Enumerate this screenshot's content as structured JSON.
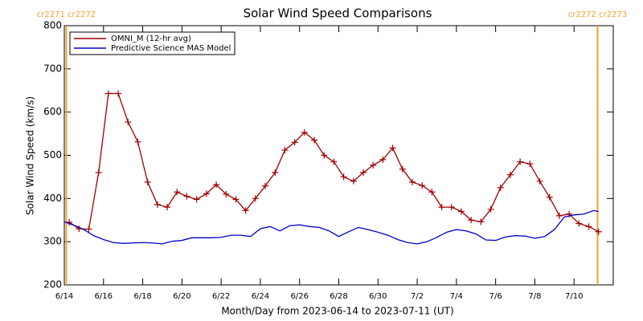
{
  "chart_data": {
    "type": "line",
    "title": "Solar Wind Speed Comparisons",
    "xlabel": "Month/Day from 2023-06-14 to 2023-07-11 (UT)",
    "ylabel": "Solar Wind Speed (km/s)",
    "xlim": [
      0,
      28
    ],
    "xticks": [
      {
        "value": 0,
        "label": "6/14"
      },
      {
        "value": 2,
        "label": "6/16"
      },
      {
        "value": 4,
        "label": "6/18"
      },
      {
        "value": 6,
        "label": "6/20"
      },
      {
        "value": 8,
        "label": "6/22"
      },
      {
        "value": 10,
        "label": "6/24"
      },
      {
        "value": 12,
        "label": "6/26"
      },
      {
        "value": 14,
        "label": "6/28"
      },
      {
        "value": 16,
        "label": "6/30"
      },
      {
        "value": 18,
        "label": "7/2"
      },
      {
        "value": 20,
        "label": "7/4"
      },
      {
        "value": 22,
        "label": "7/6"
      },
      {
        "value": 24,
        "label": "7/8"
      },
      {
        "value": 26,
        "label": "7/10"
      }
    ],
    "ylim": [
      200,
      800
    ],
    "yticks": [
      200,
      300,
      400,
      500,
      600,
      700,
      800
    ],
    "legend": "upper left",
    "annotations": [
      {
        "x": 0.1,
        "text": "cr2271 cr2272",
        "color": "#f0a030"
      },
      {
        "x": 27.2,
        "text": "cr2272 cr2273",
        "color": "#f0a030"
      }
    ],
    "series": [
      {
        "name": "OMNI_M (12-hr avg)",
        "color": "#a00000",
        "marker": "+",
        "x": [
          0.25,
          0.75,
          1.25,
          1.75,
          2.25,
          2.75,
          3.25,
          3.75,
          4.25,
          4.75,
          5.25,
          5.75,
          6.25,
          6.75,
          7.25,
          7.75,
          8.25,
          8.75,
          9.25,
          9.75,
          10.25,
          10.75,
          11.25,
          11.75,
          12.25,
          12.75,
          13.25,
          13.75,
          14.25,
          14.75,
          15.25,
          15.75,
          16.25,
          16.75,
          17.25,
          17.75,
          18.25,
          18.75,
          19.25,
          19.75,
          20.25,
          20.75,
          21.25,
          21.75,
          22.25,
          22.75,
          23.25,
          23.75,
          24.25,
          24.75,
          25.25,
          25.75,
          26.25,
          26.75,
          27.25
        ],
        "values": [
          345,
          330,
          329,
          460,
          643,
          643,
          577,
          531,
          438,
          386,
          380,
          415,
          405,
          398,
          411,
          432,
          410,
          398,
          372,
          400,
          429,
          460,
          512,
          530,
          553,
          535,
          500,
          485,
          450,
          440,
          460,
          477,
          490,
          517,
          468,
          438,
          430,
          415,
          380,
          380,
          370,
          350,
          346,
          375,
          425,
          455,
          485,
          480,
          440,
          403,
          360,
          364,
          342,
          335,
          323
        ]
      },
      {
        "name": "Predictive Science MAS Model",
        "color": "#0000cc",
        "x": [
          0,
          0.5,
          1,
          1.5,
          2,
          2.5,
          3,
          3.5,
          4,
          4.5,
          5,
          5.5,
          6,
          6.5,
          7,
          7.5,
          8,
          8.5,
          9,
          9.5,
          10,
          10.5,
          11,
          11.5,
          12,
          12.5,
          13,
          13.5,
          14,
          14.5,
          15,
          15.5,
          16,
          16.5,
          17,
          17.5,
          18,
          18.5,
          19,
          19.5,
          20,
          20.5,
          21,
          21.5,
          22,
          22.5,
          23,
          23.5,
          24,
          24.5,
          25,
          25.5,
          26,
          26.5,
          27,
          27.25
        ],
        "values": [
          346,
          338,
          328,
          314,
          305,
          298,
          296,
          297,
          298,
          297,
          295,
          301,
          303,
          309,
          309,
          309,
          310,
          315,
          315,
          312,
          330,
          335,
          325,
          337,
          339,
          335,
          333,
          325,
          312,
          323,
          333,
          328,
          322,
          315,
          305,
          298,
          295,
          300,
          310,
          322,
          328,
          325,
          318,
          304,
          303,
          311,
          314,
          313,
          308,
          312,
          328,
          357,
          362,
          364,
          372,
          370
        ]
      }
    ]
  }
}
